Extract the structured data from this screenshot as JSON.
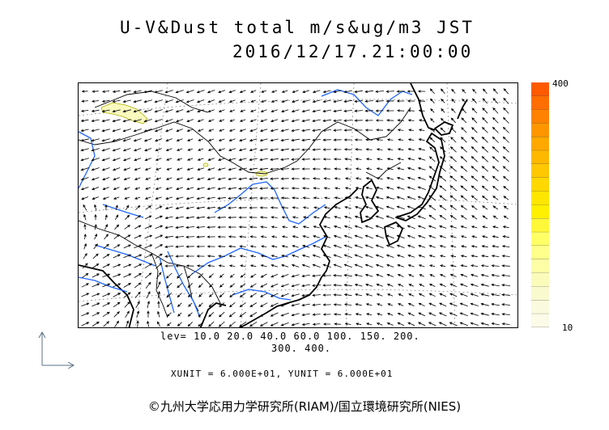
{
  "header": {
    "title_line1": "U-V&Dust total m/s&ug/m3 JST",
    "title_line2": "2016/12/17.21:00:00"
  },
  "colorbar": {
    "max_label": "400",
    "min_label": "10",
    "colors": [
      "#ff5a00",
      "#ff6e00",
      "#ff8200",
      "#ff9600",
      "#ffa800",
      "#ffb800",
      "#ffc800",
      "#ffd800",
      "#ffe600",
      "#fff000",
      "#fff83a",
      "#ffff66",
      "#ffff8c",
      "#fdfda6",
      "#fbfbbc",
      "#fafacf",
      "#fafade",
      "#fbfbe8"
    ]
  },
  "levels": {
    "line1": "lev= 10.0 20.0 40.0 60.0 100. 150. 200.",
    "line2": "300. 400."
  },
  "units_text": "XUNIT = 6.000E+01, YUNIT = 6.000E+01",
  "copyright": "©九州大学応用力学研究所(RIAM)/国立環境研究所(NIES)",
  "map": {
    "coast_color": "#000000",
    "river_color": "#1e64ff",
    "dust_fill": "#fafabf",
    "vector_color": "#000000"
  }
}
